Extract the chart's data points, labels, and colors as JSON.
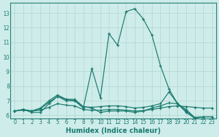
{
  "xlabel": "Humidex (Indice chaleur)",
  "xlim": [
    -0.5,
    23.5
  ],
  "ylim": [
    5.8,
    13.7
  ],
  "yticks": [
    6,
    7,
    8,
    9,
    10,
    11,
    12,
    13
  ],
  "xticks": [
    0,
    1,
    2,
    3,
    4,
    5,
    6,
    7,
    8,
    9,
    10,
    11,
    12,
    13,
    14,
    15,
    16,
    17,
    18,
    19,
    20,
    21,
    22,
    23
  ],
  "bg_color": "#ceecea",
  "grid_color": "#afd4d0",
  "line_color": "#1a7a6e",
  "lines": [
    {
      "x": [
        0,
        1,
        2,
        3,
        4,
        5,
        6,
        7,
        8,
        9,
        10,
        11,
        12,
        13,
        14,
        15,
        16,
        17,
        18,
        19,
        20,
        21,
        22
      ],
      "y": [
        6.3,
        6.4,
        6.2,
        6.2,
        6.8,
        7.3,
        7.0,
        7.0,
        6.5,
        9.2,
        7.2,
        11.6,
        10.8,
        13.1,
        13.3,
        12.6,
        11.5,
        9.4,
        7.8,
        6.8,
        6.2,
        5.8,
        5.9
      ]
    },
    {
      "x": [
        0,
        1,
        2,
        3,
        4,
        5,
        6,
        7,
        8,
        9,
        10,
        11,
        12,
        13,
        14,
        15,
        16,
        17,
        18,
        19,
        20,
        21,
        22,
        23
      ],
      "y": [
        6.3,
        6.35,
        6.3,
        6.35,
        6.55,
        6.8,
        6.7,
        6.65,
        6.4,
        6.35,
        6.35,
        6.4,
        6.4,
        6.35,
        6.3,
        6.32,
        6.4,
        6.5,
        6.6,
        6.65,
        6.6,
        6.55,
        6.5,
        6.5
      ]
    },
    {
      "x": [
        0,
        1,
        2,
        3,
        4,
        5,
        6,
        7,
        8,
        9,
        10,
        11,
        12,
        13,
        14,
        15,
        16,
        17,
        18,
        19,
        20,
        21,
        22,
        23
      ],
      "y": [
        6.3,
        6.4,
        6.3,
        6.5,
        7.0,
        7.4,
        7.1,
        7.0,
        6.6,
        6.55,
        6.6,
        6.65,
        6.65,
        6.6,
        6.5,
        6.55,
        6.65,
        6.8,
        7.6,
        6.8,
        6.4,
        5.85,
        5.9,
        5.9
      ]
    },
    {
      "x": [
        0,
        1,
        2,
        3,
        4,
        5,
        6,
        7,
        8,
        9,
        10,
        11,
        12,
        13,
        14,
        15,
        16,
        17,
        18,
        19,
        20,
        21,
        22,
        23
      ],
      "y": [
        6.3,
        6.4,
        6.3,
        6.45,
        6.9,
        7.3,
        7.1,
        7.1,
        6.6,
        6.5,
        6.2,
        6.3,
        6.3,
        6.3,
        6.2,
        6.3,
        6.5,
        6.65,
        6.85,
        6.8,
        6.3,
        5.85,
        5.9,
        5.9
      ]
    }
  ]
}
